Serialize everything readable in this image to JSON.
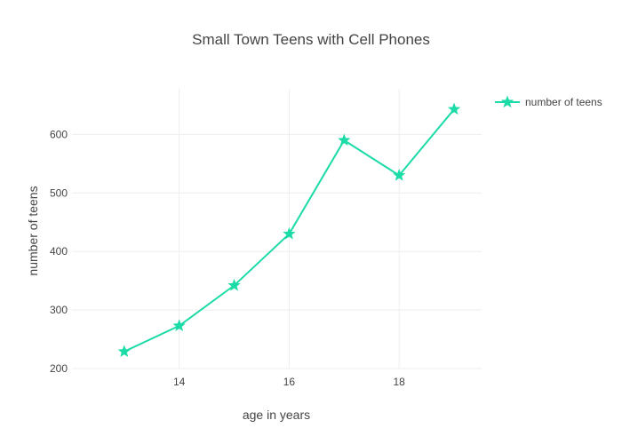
{
  "chart_data": {
    "type": "line",
    "title": "Small Town Teens with Cell Phones",
    "xlabel": "age in years",
    "ylabel": "number of teens",
    "x": [
      13,
      14,
      15,
      16,
      17,
      18,
      19
    ],
    "series": [
      {
        "name": "number of teens",
        "values": [
          229,
          273,
          342,
          430,
          590,
          530,
          643
        ],
        "color": "#1bdba6",
        "marker": "star"
      }
    ],
    "xlim": [
      12.05,
      19.5
    ],
    "ylim": [
      200,
      678
    ],
    "xticks": [
      14,
      16,
      18
    ],
    "yticks": [
      200,
      300,
      400,
      500,
      600
    ],
    "grid": true,
    "legend_position": "top-right"
  }
}
